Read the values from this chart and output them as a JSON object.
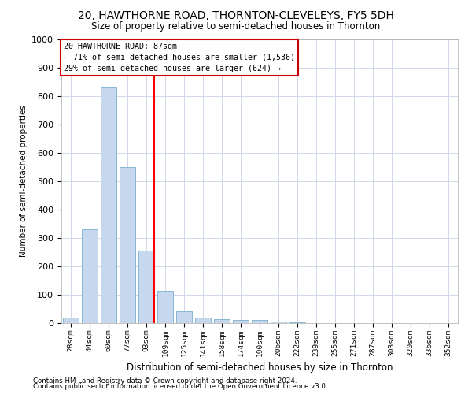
{
  "title": "20, HAWTHORNE ROAD, THORNTON-CLEVELEYS, FY5 5DH",
  "subtitle": "Size of property relative to semi-detached houses in Thornton",
  "xlabel": "Distribution of semi-detached houses by size in Thornton",
  "ylabel": "Number of semi-detached properties",
  "categories": [
    "28sqm",
    "44sqm",
    "60sqm",
    "77sqm",
    "93sqm",
    "109sqm",
    "125sqm",
    "141sqm",
    "158sqm",
    "174sqm",
    "190sqm",
    "206sqm",
    "222sqm",
    "239sqm",
    "255sqm",
    "271sqm",
    "287sqm",
    "303sqm",
    "320sqm",
    "336sqm",
    "352sqm"
  ],
  "values": [
    20,
    330,
    830,
    550,
    255,
    115,
    42,
    20,
    13,
    10,
    10,
    6,
    2,
    1,
    1,
    0,
    0,
    0,
    0,
    0,
    0
  ],
  "bar_color": "#c5d8ee",
  "bar_edge_color": "#7aadcc",
  "red_line_x": 4.42,
  "annotation_line1": "20 HAWTHORNE ROAD: 87sqm",
  "annotation_line2": "← 71% of semi-detached houses are smaller (1,536)",
  "annotation_line3": "29% of semi-detached houses are larger (624) →",
  "annotation_box_color": "#ffffff",
  "annotation_box_edge_color": "#cc0000",
  "footnote1": "Contains HM Land Registry data © Crown copyright and database right 2024.",
  "footnote2": "Contains public sector information licensed under the Open Government Licence v3.0.",
  "ylim": [
    0,
    1000
  ],
  "title_fontsize": 10,
  "subtitle_fontsize": 8.5,
  "background_color": "#ffffff",
  "grid_color": "#d0d8e8"
}
